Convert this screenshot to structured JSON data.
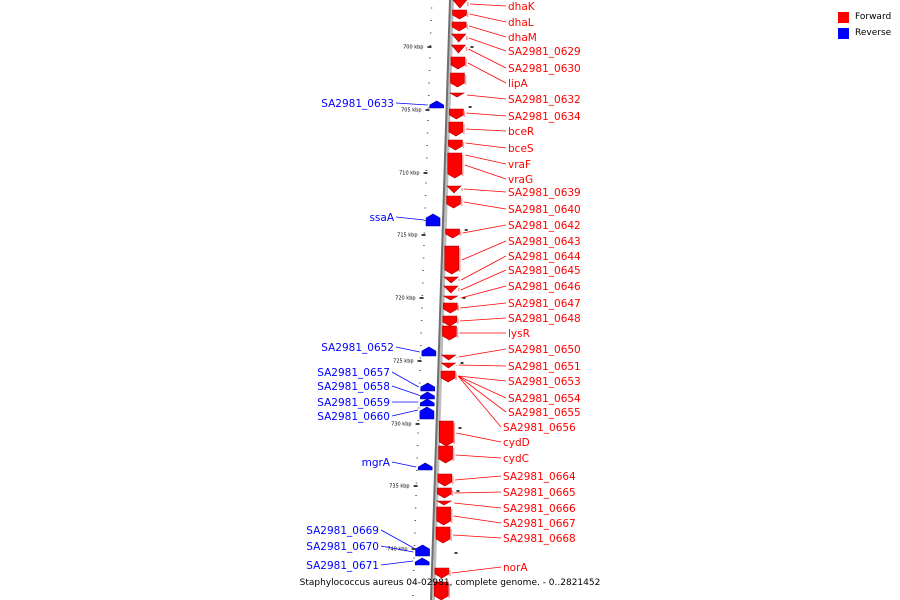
{
  "legend": {
    "forward_label": "Forward",
    "reverse_label": "Reverse",
    "forward_color": "#ff0000",
    "reverse_color": "#0000ff"
  },
  "caption": "Staphylococcus aureus 04-02981, complete genome. - 0..2821452",
  "ticks": [
    "700 kbp",
    "705 kbp",
    "710 kbp",
    "715 kbp",
    "720 kbp",
    "725 kbp",
    "730 kbp",
    "735 kbp",
    "740 kbp"
  ],
  "genes_forward": [
    "dhaK",
    "dhaL",
    "dhaM",
    "SA2981_0629",
    "SA2981_0630",
    "lipA",
    "SA2981_0632",
    "SA2981_0634",
    "bceR",
    "bceS",
    "vraF",
    "vraG",
    "SA2981_0639",
    "SA2981_0640",
    "SA2981_0642",
    "SA2981_0643",
    "SA2981_0644",
    "SA2981_0645",
    "SA2981_0646",
    "SA2981_0647",
    "SA2981_0648",
    "lysR",
    "SA2981_0650",
    "SA2981_0651",
    "SA2981_0653",
    "SA2981_0654",
    "SA2981_0655",
    "SA2981_0656",
    "cydD",
    "cydC",
    "SA2981_0664",
    "SA2981_0665",
    "SA2981_0666",
    "SA2981_0667",
    "SA2981_0668",
    "norA"
  ],
  "genes_reverse": [
    "SA2981_0633",
    "ssaA",
    "SA2981_0652",
    "SA2981_0657",
    "SA2981_0658",
    "SA2981_0659",
    "SA2981_0660",
    "mgrA",
    "SA2981_0669",
    "SA2981_0670",
    "SA2981_0671"
  ]
}
